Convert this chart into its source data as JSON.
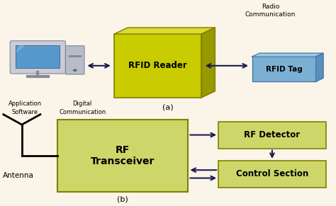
{
  "bg_color": "#faf5e8",
  "rfid_reader_color": "#c8cc00",
  "rfid_reader_top_color": "#d8dc30",
  "rfid_reader_right_color": "#989900",
  "rfid_reader_label": "RFID Reader",
  "rfid_tag_face_color": "#7bafd4",
  "rfid_tag_top_color": "#9ecae1",
  "rfid_tag_right_color": "#5a8fbb",
  "rfid_tag_label": "RFID Tag",
  "radio_comm_label": "Radio\nCommunication",
  "digital_comm_label": "Digital\nCommunication",
  "app_software_label": "Application\nSoftware",
  "label_a": "(a)",
  "label_b": "(b)",
  "transceiver_color": "#cdd668",
  "transceiver_label": "RF\nTransceiver",
  "rf_detector_color": "#cdd668",
  "rf_detector_label": "RF Detector",
  "control_section_color": "#cdd668",
  "control_section_label": "Control Section",
  "antenna_label": "Antenna",
  "arrow_color": "#1a1a50",
  "box_edge_color": "#808000",
  "text_color": "#000000"
}
